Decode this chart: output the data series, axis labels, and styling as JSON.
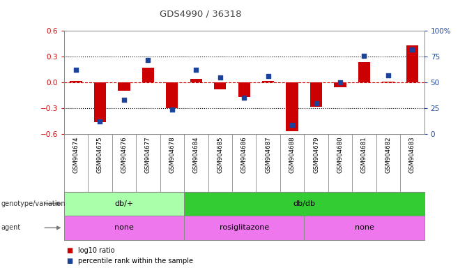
{
  "title": "GDS4990 / 36318",
  "samples": [
    "GSM904674",
    "GSM904675",
    "GSM904676",
    "GSM904677",
    "GSM904678",
    "GSM904684",
    "GSM904685",
    "GSM904686",
    "GSM904687",
    "GSM904688",
    "GSM904679",
    "GSM904680",
    "GSM904681",
    "GSM904682",
    "GSM904683"
  ],
  "log10_ratio": [
    0.02,
    -0.46,
    -0.1,
    0.17,
    -0.3,
    0.04,
    -0.08,
    -0.17,
    0.02,
    -0.57,
    -0.28,
    -0.06,
    0.24,
    0.01,
    0.43
  ],
  "percentile": [
    62,
    12,
    33,
    72,
    24,
    62,
    55,
    35,
    56,
    9,
    30,
    50,
    76,
    57,
    82
  ],
  "ylim_left": [
    -0.6,
    0.6
  ],
  "ylim_right": [
    0,
    100
  ],
  "yticks_left": [
    -0.6,
    -0.3,
    0.0,
    0.3,
    0.6
  ],
  "yticks_right": [
    0,
    25,
    50,
    75,
    100
  ],
  "ytick_labels_right": [
    "0",
    "25",
    "50",
    "75",
    "100%"
  ],
  "hline_dotted": [
    0.3,
    -0.3
  ],
  "hline_dashed_red": 0.0,
  "bar_color": "#cc0000",
  "dot_color": "#1c439b",
  "bar_width": 0.5,
  "genotype_groups": [
    {
      "label": "db/+",
      "start": 0,
      "end": 4,
      "color": "#aaffaa"
    },
    {
      "label": "db/db",
      "start": 5,
      "end": 14,
      "color": "#33cc33"
    }
  ],
  "agent_groups": [
    {
      "label": "none",
      "start": 0,
      "end": 4,
      "color": "#ee77ee"
    },
    {
      "label": "rosiglitazone",
      "start": 5,
      "end": 9,
      "color": "#ee77ee"
    },
    {
      "label": "none",
      "start": 10,
      "end": 14,
      "color": "#ee77ee"
    }
  ],
  "left_axis_color": "#cc0000",
  "right_axis_color": "#1c439b",
  "cell_bg": "#dddddd",
  "cell_border": "#888888"
}
